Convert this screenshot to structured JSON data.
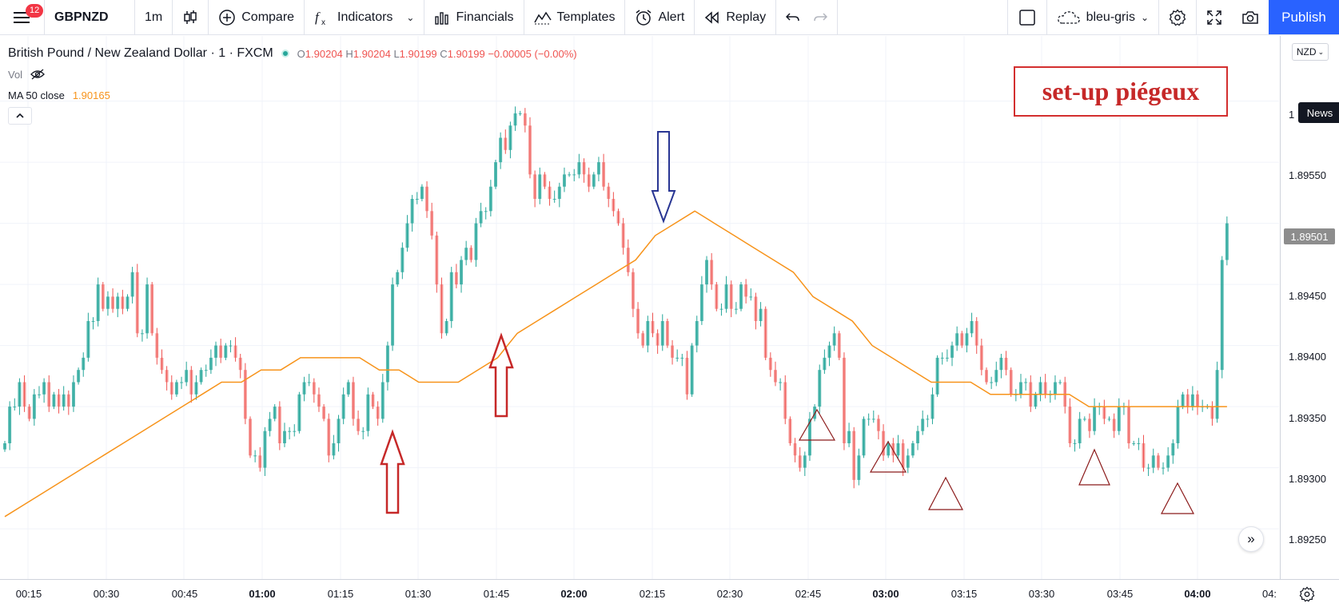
{
  "toolbar": {
    "notifications": "12",
    "symbol": "GBPNZD",
    "interval": "1m",
    "compare": "Compare",
    "indicators": "Indicators",
    "financials": "Financials",
    "templates": "Templates",
    "alert": "Alert",
    "replay": "Replay",
    "layout_name": "bleu-gris",
    "publish": "Publish"
  },
  "legend": {
    "title": "British Pound / New Zealand Dollar · 1 · FXCM",
    "open_key": "O",
    "open": "1.90204",
    "high_key": "H",
    "high": "1.90204",
    "low_key": "L",
    "low": "1.90199",
    "close_key": "C",
    "close": "1.90199",
    "change": "−0.00005 (−0.00%)",
    "vol_label": "Vol",
    "ma_label": "MA 50 close",
    "ma_value": "1.90165"
  },
  "annotation": "set-up piégeux",
  "price_axis": {
    "currency": "NZD",
    "news": "News",
    "clipped_label": "1",
    "current_price": "1.89501",
    "ticks": [
      "1.89550",
      "1.89450",
      "1.89400",
      "1.89350",
      "1.89300",
      "1.89250"
    ]
  },
  "time_axis": {
    "ticks": [
      {
        "label": "00:15",
        "bold": false
      },
      {
        "label": "00:30",
        "bold": false
      },
      {
        "label": "00:45",
        "bold": false
      },
      {
        "label": "01:00",
        "bold": true
      },
      {
        "label": "01:15",
        "bold": false
      },
      {
        "label": "01:30",
        "bold": false
      },
      {
        "label": "01:45",
        "bold": false
      },
      {
        "label": "02:00",
        "bold": true
      },
      {
        "label": "02:15",
        "bold": false
      },
      {
        "label": "02:30",
        "bold": false
      },
      {
        "label": "02:45",
        "bold": false
      },
      {
        "label": "03:00",
        "bold": true
      },
      {
        "label": "03:15",
        "bold": false
      },
      {
        "label": "03:30",
        "bold": false
      },
      {
        "label": "03:45",
        "bold": false
      },
      {
        "label": "04:00",
        "bold": true
      },
      {
        "label": "04:",
        "bold": false
      }
    ]
  },
  "colors": {
    "up": "#26a69a",
    "down": "#ef5350",
    "ma": "#f7931a",
    "arrow_red": "#c62828",
    "arrow_blue": "#283593"
  },
  "chart_data": {
    "type": "candlestick",
    "interval": "1m",
    "ma_label": "MA 50 close",
    "y_range": [
      1.8922,
      1.8962
    ],
    "closes": [
      1.8932,
      1.8935,
      1.8935,
      1.8937,
      1.8935,
      1.8934,
      1.8936,
      1.8936,
      1.8937,
      1.8935,
      1.8936,
      1.8935,
      1.8936,
      1.8935,
      1.8937,
      1.8938,
      1.8939,
      1.8942,
      1.8942,
      1.8945,
      1.8943,
      1.8944,
      1.8943,
      1.8944,
      1.8943,
      1.8944,
      1.8946,
      1.8941,
      1.8941,
      1.8945,
      1.8941,
      1.8939,
      1.8938,
      1.8937,
      1.8936,
      1.8937,
      1.8937,
      1.8938,
      1.8936,
      1.8937,
      1.8938,
      1.8938,
      1.8939,
      1.894,
      1.8939,
      1.894,
      1.894,
      1.8939,
      1.8938,
      1.8934,
      1.8931,
      1.8931,
      1.893,
      1.8933,
      1.8934,
      1.8935,
      1.8932,
      1.8933,
      1.8933,
      1.8933,
      1.8936,
      1.8937,
      1.8937,
      1.8936,
      1.8935,
      1.8934,
      1.8931,
      1.8932,
      1.8934,
      1.8936,
      1.8937,
      1.8934,
      1.8933,
      1.8933,
      1.8936,
      1.8935,
      1.8934,
      1.8937,
      1.894,
      1.8945,
      1.8946,
      1.8948,
      1.895,
      1.8952,
      1.8952,
      1.8953,
      1.8951,
      1.8949,
      1.8945,
      1.8941,
      1.8942,
      1.8946,
      1.8945,
      1.8947,
      1.8948,
      1.8947,
      1.895,
      1.8951,
      1.8951,
      1.8953,
      1.8955,
      1.8957,
      1.8956,
      1.8958,
      1.8959,
      1.8959,
      1.8958,
      1.8954,
      1.8952,
      1.8954,
      1.8953,
      1.8952,
      1.8952,
      1.8953,
      1.8954,
      1.8954,
      1.8954,
      1.8955,
      1.8954,
      1.8953,
      1.8954,
      1.8955,
      1.8953,
      1.8952,
      1.8951,
      1.895,
      1.8948,
      1.8946,
      1.8943,
      1.8941,
      1.894,
      1.8942,
      1.8941,
      1.894,
      1.8942,
      1.894,
      1.8939,
      1.8939,
      1.8939,
      1.8936,
      1.894,
      1.8942,
      1.8945,
      1.8947,
      1.8945,
      1.8943,
      1.8943,
      1.8945,
      1.8943,
      1.8943,
      1.8945,
      1.8944,
      1.8944,
      1.8942,
      1.8943,
      1.8939,
      1.8938,
      1.8937,
      1.8937,
      1.8934,
      1.8932,
      1.8931,
      1.893,
      1.8931,
      1.8934,
      1.8935,
      1.8938,
      1.8939,
      1.894,
      1.8941,
      1.8939,
      1.8932,
      1.8933,
      1.8929,
      1.8931,
      1.8934,
      1.8934,
      1.8934,
      1.8933,
      1.8931,
      1.8932,
      1.8931,
      1.8932,
      1.893,
      1.8931,
      1.8932,
      1.8933,
      1.8934,
      1.8934,
      1.8936,
      1.8939,
      1.8939,
      1.8939,
      1.894,
      1.8941,
      1.894,
      1.8941,
      1.8942,
      1.894,
      1.8938,
      1.8937,
      1.8937,
      1.8938,
      1.8939,
      1.8938,
      1.8936,
      1.8936,
      1.8937,
      1.8937,
      1.8935,
      1.8936,
      1.8937,
      1.8936,
      1.8936,
      1.8937,
      1.8937,
      1.8935,
      1.8932,
      1.8932,
      1.8934,
      1.8934,
      1.8933,
      1.8935,
      1.8935,
      1.8934,
      1.8934,
      1.8933,
      1.8935,
      1.8935,
      1.8932,
      1.8932,
      1.8932,
      1.893,
      1.893,
      1.8931,
      1.893,
      1.893,
      1.8931,
      1.8932,
      1.8935,
      1.8936,
      1.8935,
      1.8936,
      1.8935,
      1.8935,
      1.8935,
      1.8934,
      1.8938,
      1.8947,
      1.895
    ],
    "ma_50": [
      1.8926,
      1.8927,
      1.8928,
      1.8929,
      1.893,
      1.8931,
      1.8932,
      1.8933,
      1.8934,
      1.8935,
      1.8936,
      1.8937,
      1.8937,
      1.8938,
      1.8938,
      1.8939,
      1.8939,
      1.8939,
      1.8939,
      1.8938,
      1.8938,
      1.8937,
      1.8937,
      1.8937,
      1.8938,
      1.8939,
      1.8941,
      1.8942,
      1.8943,
      1.8944,
      1.8945,
      1.8946,
      1.8947,
      1.8949,
      1.895,
      1.8951,
      1.895,
      1.8949,
      1.8948,
      1.8947,
      1.8946,
      1.8944,
      1.8943,
      1.8942,
      1.894,
      1.8939,
      1.8938,
      1.8937,
      1.8937,
      1.8937,
      1.8936,
      1.8936,
      1.8936,
      1.8936,
      1.8936,
      1.8935,
      1.8935,
      1.8935,
      1.8935,
      1.8935,
      1.8935,
      1.8935,
      1.8935
    ],
    "annotations": [
      {
        "type": "arrow-up",
        "color": "red",
        "time": "01:24"
      },
      {
        "type": "arrow-up",
        "color": "red",
        "time": "01:46"
      },
      {
        "type": "arrow-down",
        "color": "blue",
        "time": "02:17"
      },
      {
        "type": "triangle",
        "color": "darkred",
        "time": "02:50"
      },
      {
        "type": "triangle",
        "color": "darkred",
        "time": "03:00"
      },
      {
        "type": "triangle",
        "color": "darkred",
        "time": "03:12"
      },
      {
        "type": "triangle",
        "color": "darkred",
        "time": "03:41"
      },
      {
        "type": "triangle",
        "color": "darkred",
        "time": "03:55"
      }
    ]
  }
}
